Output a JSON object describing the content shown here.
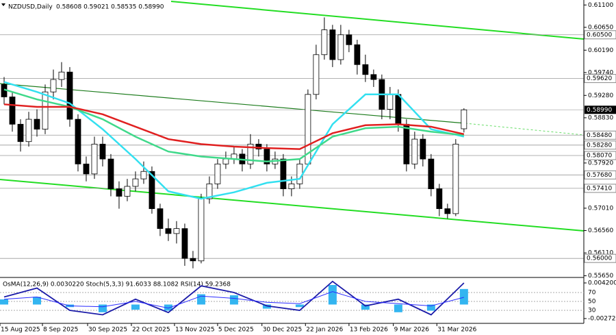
{
  "chart_data": {
    "type": "candlestick",
    "title": "NZDUSD,Daily",
    "header_values": "0.58608 0.59021 0.58535 0.58990",
    "open": [
      0.595,
      0.5925,
      0.587,
      0.5835,
      0.588,
      0.586,
      0.5935,
      0.596,
      0.5975,
      0.588,
      0.579,
      0.577,
      0.583,
      0.58,
      0.574,
      0.5725,
      0.5745,
      0.576,
      0.5775,
      0.57,
      0.566,
      0.565,
      0.566,
      0.56,
      0.5595,
      0.572,
      0.575,
      0.579,
      0.58,
      0.581,
      0.579,
      0.583,
      0.582,
      0.579,
      0.58,
      0.574,
      0.575,
      0.579,
      0.593,
      0.601,
      0.606,
      0.6,
      0.605,
      0.603,
      0.599,
      0.597,
      0.596,
      0.59,
      0.593,
      0.587,
      0.579,
      0.584,
      0.58,
      0.574,
      0.57,
      0.569,
      0.58608
    ],
    "high": [
      0.5965,
      0.5935,
      0.588,
      0.5895,
      0.59,
      0.595,
      0.598,
      0.5995,
      0.5985,
      0.589,
      0.5805,
      0.5845,
      0.5845,
      0.581,
      0.5755,
      0.576,
      0.5775,
      0.5795,
      0.5785,
      0.571,
      0.568,
      0.5675,
      0.567,
      0.5615,
      0.573,
      0.5765,
      0.58,
      0.5815,
      0.5825,
      0.582,
      0.585,
      0.584,
      0.583,
      0.5815,
      0.581,
      0.5765,
      0.58,
      0.594,
      0.603,
      0.6085,
      0.607,
      0.607,
      0.606,
      0.604,
      0.601,
      0.598,
      0.597,
      0.5945,
      0.594,
      0.588,
      0.5855,
      0.585,
      0.581,
      0.575,
      0.571,
      0.584,
      0.59021
    ],
    "low": [
      0.591,
      0.5855,
      0.5815,
      0.5825,
      0.5845,
      0.585,
      0.592,
      0.5945,
      0.5865,
      0.5775,
      0.5755,
      0.576,
      0.5785,
      0.5725,
      0.57,
      0.5715,
      0.5735,
      0.575,
      0.569,
      0.5645,
      0.5635,
      0.563,
      0.5585,
      0.558,
      0.559,
      0.571,
      0.574,
      0.578,
      0.579,
      0.5775,
      0.578,
      0.5805,
      0.5775,
      0.578,
      0.5725,
      0.5725,
      0.574,
      0.5785,
      0.592,
      0.6,
      0.5985,
      0.599,
      0.6015,
      0.597,
      0.5955,
      0.5945,
      0.588,
      0.588,
      0.5855,
      0.5775,
      0.578,
      0.5785,
      0.5725,
      0.5685,
      0.568,
      0.5685,
      0.58535
    ],
    "close": [
      0.5925,
      0.587,
      0.5835,
      0.588,
      0.586,
      0.5935,
      0.596,
      0.5975,
      0.588,
      0.579,
      0.577,
      0.583,
      0.58,
      0.574,
      0.5725,
      0.5745,
      0.576,
      0.5775,
      0.57,
      0.566,
      0.565,
      0.566,
      0.56,
      0.5595,
      0.572,
      0.575,
      0.579,
      0.58,
      0.581,
      0.579,
      0.583,
      0.582,
      0.579,
      0.58,
      0.574,
      0.575,
      0.579,
      0.593,
      0.601,
      0.606,
      0.6,
      0.605,
      0.603,
      0.599,
      0.597,
      0.596,
      0.59,
      0.593,
      0.587,
      0.579,
      0.584,
      0.58,
      0.574,
      0.57,
      0.569,
      0.583,
      0.5899
    ],
    "ma_index": [
      0,
      4,
      8,
      12,
      16,
      20,
      24,
      28,
      32,
      36,
      40,
      44,
      48,
      52,
      56
    ],
    "series": [
      {
        "color": "#33e0f0",
        "values": [
          0.5955,
          0.5935,
          0.5912,
          0.586,
          0.58,
          0.5735,
          0.572,
          0.5733,
          0.5752,
          0.576,
          0.587,
          0.593,
          0.593,
          0.586,
          0.5845
        ]
      },
      {
        "color": "#3fd98a",
        "values": [
          0.594,
          0.592,
          0.5905,
          0.588,
          0.5845,
          0.5815,
          0.5805,
          0.58,
          0.5795,
          0.58,
          0.5845,
          0.5862,
          0.5865,
          0.5855,
          0.5848
        ]
      },
      {
        "color": "#e02020",
        "values": [
          0.591,
          0.5905,
          0.5905,
          0.589,
          0.5865,
          0.584,
          0.583,
          0.5825,
          0.5822,
          0.582,
          0.5852,
          0.5868,
          0.587,
          0.5865,
          0.585
        ]
      }
    ],
    "xlim": [
      -0.5,
      70.6
    ],
    "xticks": [
      {
        "value": -0.5,
        "label": "15 Aug 2025"
      },
      {
        "value": 4.67,
        "label": "8 Sep 2025"
      },
      {
        "value": 10.17,
        "label": "30 Sep 2025"
      },
      {
        "value": 15.5,
        "label": "22 Oct 2025"
      },
      {
        "value": 20.75,
        "label": "13 Nov 2025"
      },
      {
        "value": 26,
        "label": "5 Dec 2025"
      },
      {
        "value": 31.4,
        "label": "30 Dec 2025"
      },
      {
        "value": 36.7,
        "label": "22 Jan 2026"
      },
      {
        "value": 42,
        "label": "13 Feb 2026"
      },
      {
        "value": 47.4,
        "label": "9 Mar 2026"
      },
      {
        "value": 52.7,
        "label": "31 Mar 2026"
      }
    ],
    "ylim": [
      0.5563,
      0.612
    ],
    "yticks": [
      {
        "value": 0.611,
        "label": "0.61100"
      },
      {
        "value": 0.6065,
        "label": "0.60650"
      },
      {
        "value": 0.6019,
        "label": "0.60190"
      },
      {
        "value": 0.5974,
        "label": "0.59740"
      },
      {
        "value": 0.5928,
        "label": "0.59280"
      },
      {
        "value": 0.5883,
        "label": "0.58830"
      },
      {
        "value": 0.5792,
        "label": "0.57920"
      },
      {
        "value": 0.5701,
        "label": "0.57010"
      },
      {
        "value": 0.5656,
        "label": "0.56560"
      },
      {
        "value": 0.5611,
        "label": "0.56110"
      },
      {
        "value": 0.5565,
        "label": "0.55650"
      }
    ],
    "levels": [
      {
        "value": 0.605,
        "label": "0.60500"
      },
      {
        "value": 0.5962,
        "label": "0.59620"
      },
      {
        "value": 0.5848,
        "label": "0.58480"
      },
      {
        "value": 0.5828,
        "label": "0.58280"
      },
      {
        "value": 0.5807,
        "label": "0.58070"
      },
      {
        "value": 0.5768,
        "label": "0.57680"
      },
      {
        "value": 0.5741,
        "label": "0.57410"
      },
      {
        "value": 0.56,
        "label": "0.56000"
      }
    ],
    "current": {
      "value": 0.5899,
      "label": "0.58990"
    },
    "oscillator": {
      "title": "OsMA(12,26,9) 0.0030220  Stoch(5,3,3) 91.6033 88.1082  RSI(14) 59.2368",
      "ylim": [
        -0.002729,
        0.0042
      ],
      "yticks": [
        {
          "value": 0.0042,
          "label": "0.004200"
        },
        {
          "value": -0.002729,
          "label": "-0.002729"
        }
      ],
      "level_lim": [
        0,
        100
      ],
      "levels": [
        70,
        50,
        30
      ],
      "osma": [
        0.001,
        0.0015,
        -0.0005,
        -0.0015,
        -0.001,
        -0.0012,
        0.002,
        0.0018,
        -0.0008,
        -0.0005,
        0.0038,
        -0.001,
        -0.0015,
        -0.0012,
        0.003022
      ],
      "stoch": [
        60,
        80,
        30,
        20,
        55,
        25,
        85,
        70,
        40,
        30,
        95,
        40,
        55,
        20,
        91.6
      ],
      "rsi": [
        55,
        60,
        40,
        38,
        50,
        35,
        62,
        57,
        48,
        45,
        72,
        50,
        45,
        40,
        59.2
      ],
      "osma_color": "#33b5f0",
      "stoch_color": "#1a1aa8",
      "rsi_color": "#2a2aff"
    }
  }
}
